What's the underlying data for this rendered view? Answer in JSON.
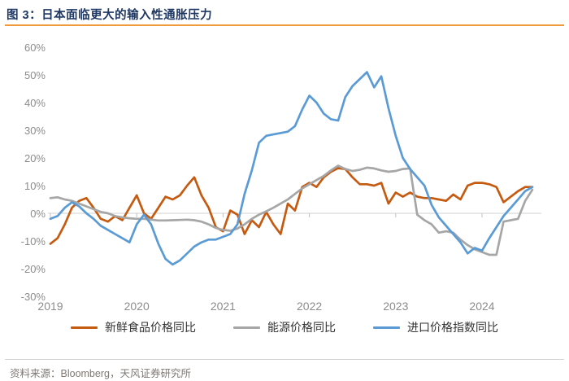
{
  "header": {
    "title": "图 3：日本面临更大的输入性通胀压力"
  },
  "footer": {
    "source": "资料来源：Bloomberg，天风证券研究所"
  },
  "colors": {
    "title": "#1F3864",
    "title_rule": "#F09A3C",
    "axis_label": "#8C8C8C",
    "zero_line": "#E0E0E0",
    "year_tick": "#BFBFBF",
    "legend_text": "#333333",
    "source_text": "#807974",
    "fresh_food_line": "#C55A11",
    "energy_line": "#A6A6A6",
    "import_price_line": "#5B9BD5"
  },
  "chart_data": {
    "type": "line",
    "title": "日本面临更大的输入性通胀压力",
    "x_unit": "month",
    "x_start_label": "2019",
    "x_axis_labels": [
      "2019",
      "2020",
      "2021",
      "2022",
      "2023",
      "2024"
    ],
    "y_tick_labels": [
      "60%",
      "50%",
      "40%",
      "30%",
      "20%",
      "10%",
      "0%",
      "-10%",
      "-20%",
      "-30%"
    ],
    "ylim": [
      -30,
      60
    ],
    "grid": "zero-line-only",
    "legend_position": "bottom",
    "series": [
      {
        "key": "fresh-food",
        "name": "新鲜食品价格同比",
        "color": "#C55A11",
        "values": [
          -11,
          -9,
          -4,
          2,
          4.5,
          5.5,
          2,
          -2,
          -3,
          -1,
          -2.5,
          2,
          6.5,
          0,
          -2,
          2,
          6,
          5,
          6.5,
          10,
          13,
          6.5,
          2,
          -5,
          -6.5,
          1,
          -0.5,
          -7.5,
          -2.5,
          -5,
          0.5,
          -4,
          -7.5,
          3.5,
          1,
          9.5,
          11,
          9.5,
          13,
          15,
          16.3,
          16,
          13,
          10.5,
          10.5,
          10,
          11,
          3.5,
          7.5,
          6,
          7.5,
          6,
          5.5,
          5.5,
          5,
          4.5,
          6.8,
          5,
          10,
          11,
          11,
          10.5,
          9.5,
          4,
          6,
          8,
          9.5,
          9.5
        ]
      },
      {
        "key": "energy",
        "name": "能源价格同比",
        "color": "#A6A6A6",
        "values": [
          5.5,
          5.8,
          5,
          4.5,
          3.5,
          2.5,
          1.5,
          0.5,
          0,
          -1,
          -1.5,
          -1.8,
          -2,
          -2,
          -2.3,
          -2.6,
          -2.6,
          -2.5,
          -2.4,
          -2.3,
          -2.5,
          -3,
          -4,
          -5.3,
          -6,
          -6.3,
          -5.5,
          -4,
          -2,
          -0.5,
          0.7,
          2,
          3.5,
          5,
          7,
          9,
          10.5,
          12,
          13.5,
          15.5,
          17.2,
          16,
          15.3,
          15.7,
          16.5,
          16.2,
          15.5,
          15,
          15.3,
          16,
          16.2,
          -0.5,
          -2.5,
          -4,
          -7,
          -6.5,
          -7,
          -9.5,
          -11.5,
          -13,
          -14,
          -15,
          -15,
          -3,
          -2.5,
          -2,
          4.5,
          8.5
        ]
      },
      {
        "key": "import-price-index",
        "name": "进口价格指数同比",
        "color": "#5B9BD5",
        "values": [
          -2,
          -1,
          2,
          4,
          2.5,
          0,
          -2,
          -4.5,
          -6,
          -7.5,
          -9,
          -10.5,
          -4,
          -0.5,
          -4,
          -11,
          -16.5,
          -18.5,
          -17,
          -14.5,
          -12,
          -10.5,
          -9.5,
          -9.5,
          -8.5,
          -7.5,
          -4,
          7,
          15.5,
          25.5,
          28,
          28.5,
          29,
          29.5,
          31.5,
          37.5,
          42.5,
          40,
          36,
          34,
          33.5,
          42,
          46,
          48.5,
          51,
          45.5,
          49.5,
          38,
          28,
          20,
          16,
          13,
          10,
          3,
          -1.5,
          -4.5,
          -7.5,
          -10.5,
          -14.5,
          -12.5,
          -13.5,
          -9,
          -5,
          -1,
          2,
          5,
          8,
          9.5
        ]
      }
    ]
  }
}
